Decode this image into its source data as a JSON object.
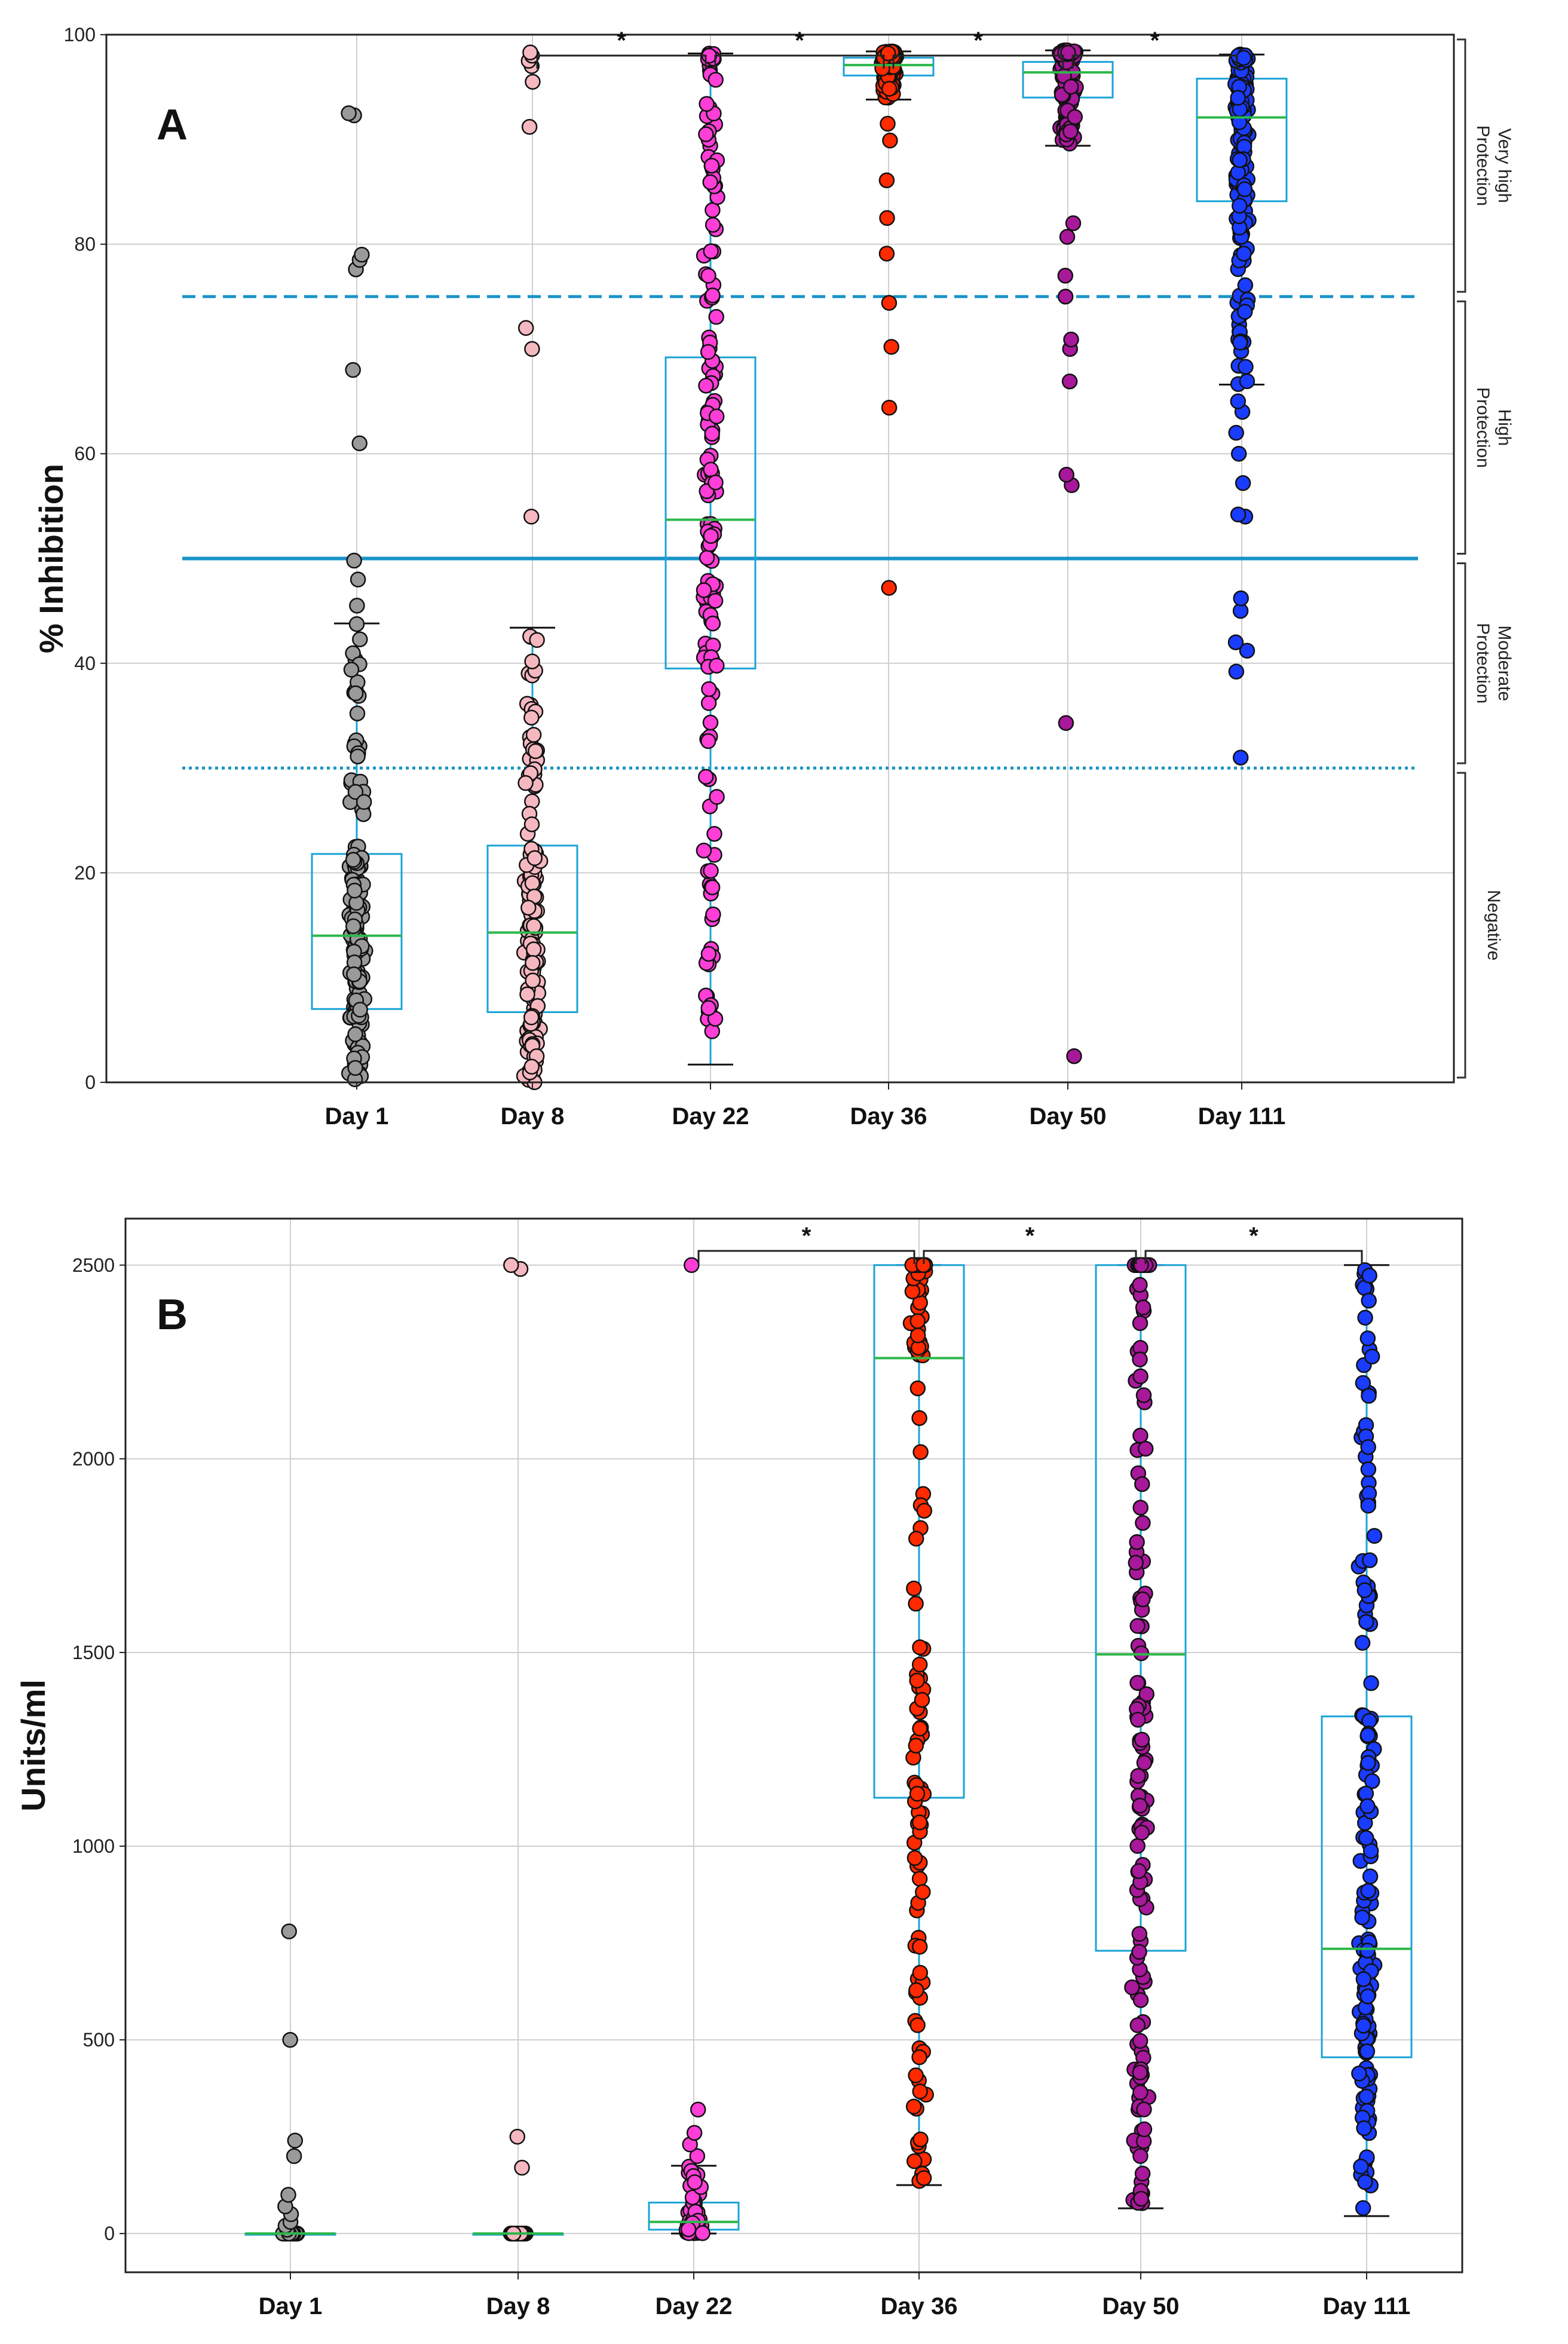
{
  "colors": {
    "day1": "#9a9a9a",
    "day8": "#f6b8c0",
    "day22": "#ff3ed8",
    "day36": "#ff2a00",
    "day50": "#a8189a",
    "day111": "#1a3cff",
    "box": "#1aa3d6",
    "median": "#2cb84a",
    "threshold": "#1a94c8",
    "grid": "#cfcfcf"
  },
  "chart_data": [
    {
      "panel": "A",
      "type": "box",
      "ylabel": "% Inhibition",
      "ylim": [
        0,
        100
      ],
      "yticks": [
        "0",
        "20",
        "40",
        "60",
        "80",
        "100"
      ],
      "categories": [
        "Day 1",
        "Day 8",
        "Day 22",
        "Day 36",
        "Day 50",
        "Day 111"
      ],
      "series": [
        {
          "name": "Day 1",
          "q1": 7,
          "median": 14,
          "q3": 21.8,
          "whisker_low": 0,
          "whisker_high": 43.8,
          "outliers": [
            45.5,
            48,
            49.8,
            61,
            68,
            77.6,
            78.5,
            79,
            92.3,
            92.5
          ]
        },
        {
          "name": "Day 8",
          "q1": 6.7,
          "median": 14.3,
          "q3": 22.6,
          "whisker_low": 0,
          "whisker_high": 43.4,
          "outliers": [
            54,
            70,
            72,
            91.2,
            95.5,
            97,
            97.5,
            98,
            98.3
          ]
        },
        {
          "name": "Day 22",
          "q1": 39.5,
          "median": 53.7,
          "q3": 69.2,
          "whisker_low": 1.7,
          "whisker_high": 98.2,
          "outliers": []
        },
        {
          "name": "Day 36",
          "q1": 96.1,
          "median": 97.1,
          "q3": 97.8,
          "whisker_low": 93.8,
          "whisker_high": 98.4,
          "outliers": [
            47.2,
            64.4,
            70.2,
            74.4,
            79.1,
            82.5,
            86.1,
            89.9,
            91.5
          ]
        },
        {
          "name": "Day 50",
          "q1": 94,
          "median": 96.4,
          "q3": 97.4,
          "whisker_low": 89.4,
          "whisker_high": 98.5,
          "outliers": [
            2.5,
            34.3,
            57,
            58,
            66.9,
            70,
            70.9,
            75,
            77,
            80.7,
            82
          ]
        },
        {
          "name": "Day 111",
          "q1": 84.1,
          "median": 92.1,
          "q3": 95.8,
          "whisker_low": 66.6,
          "whisker_high": 98.1,
          "outliers": [
            31,
            39.2,
            41.2,
            42,
            45,
            46.2,
            54,
            54.2,
            57.2,
            60,
            62,
            64,
            65
          ]
        }
      ],
      "thresholds": [
        {
          "value": 75,
          "style": "dashed"
        },
        {
          "value": 50,
          "style": "solid"
        },
        {
          "value": 30,
          "style": "dotted"
        }
      ],
      "zones": [
        {
          "label_lines": [
            "Very high",
            "Protection"
          ],
          "from": 75,
          "to": 100
        },
        {
          "label_lines": [
            "High",
            "Protection"
          ],
          "from": 50,
          "to": 75
        },
        {
          "label_lines": [
            "Moderate",
            "Protection"
          ],
          "from": 30,
          "to": 50
        },
        {
          "label_lines": [
            "Negative"
          ],
          "from": 0,
          "to": 30
        }
      ],
      "significance": [
        {
          "from": "Day 8",
          "to": "Day 22",
          "label": "*"
        },
        {
          "from": "Day 22",
          "to": "Day 36",
          "label": "*"
        },
        {
          "from": "Day 36",
          "to": "Day 50",
          "label": "*"
        },
        {
          "from": "Day 50",
          "to": "Day 111",
          "label": "*"
        }
      ]
    },
    {
      "panel": "B",
      "type": "box",
      "ylabel": "Units/ml",
      "ylim": [
        -100,
        2620
      ],
      "yticks": [
        "0",
        "500",
        "1000",
        "1500",
        "2000",
        "2500"
      ],
      "categories": [
        "Day 1",
        "Day 8",
        "Day 22",
        "Day 36",
        "Day 50",
        "Day 111"
      ],
      "series": [
        {
          "name": "Day 1",
          "q1": 0,
          "median": 0,
          "q3": 0,
          "whisker_low": 0,
          "whisker_high": 0,
          "outliers": [
            10,
            20,
            30,
            50,
            70,
            100,
            200,
            240,
            500,
            780
          ]
        },
        {
          "name": "Day 8",
          "q1": 0,
          "median": 0,
          "q3": 0,
          "whisker_low": 0,
          "whisker_high": 0,
          "outliers": [
            170,
            250,
            2490,
            2500
          ]
        },
        {
          "name": "Day 22",
          "q1": 10,
          "median": 30,
          "q3": 80,
          "whisker_low": 0,
          "whisker_high": 175,
          "outliers": [
            200,
            230,
            260,
            320,
            2500
          ]
        },
        {
          "name": "Day 36",
          "q1": 1125,
          "median": 2260,
          "q3": 2500,
          "whisker_low": 125,
          "whisker_high": 2500,
          "outliers": []
        },
        {
          "name": "Day 50",
          "q1": 730,
          "median": 1495,
          "q3": 2500,
          "whisker_low": 65,
          "whisker_high": 2500,
          "outliers": []
        },
        {
          "name": "Day 111",
          "q1": 455,
          "median": 735,
          "q3": 1335,
          "whisker_low": 45,
          "whisker_high": 2500,
          "outliers": []
        }
      ],
      "significance": [
        {
          "from": "Day 22",
          "to": "Day 36",
          "label": "*"
        },
        {
          "from": "Day 36",
          "to": "Day 50",
          "label": "*"
        },
        {
          "from": "Day 50",
          "to": "Day 111",
          "label": "*"
        }
      ]
    }
  ]
}
